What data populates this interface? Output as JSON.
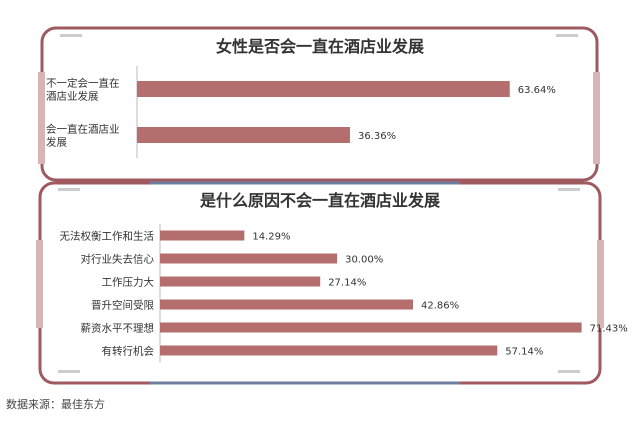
{
  "chart_data": [
    {
      "type": "bar",
      "title": "女性是否会一直在酒店业发展",
      "categories": [
        "不一定会一直在酒店业发展",
        "会一直在酒店业发展"
      ],
      "values": [
        63.64,
        36.36
      ],
      "value_labels": [
        "63.64%",
        "36.36%"
      ],
      "orientation": "horizontal",
      "xlim": [
        0,
        70
      ],
      "grid": false,
      "legend": "none",
      "bar_color": "#b56e6e"
    },
    {
      "type": "bar",
      "title": "是什么原因不会一直在酒店业发展",
      "categories": [
        "无法权衡工作和生活",
        "对行业失去信心",
        "工作压力大",
        "晋升空间受限",
        "薪资水平不理想",
        "有转行机会"
      ],
      "values": [
        14.29,
        30.0,
        27.14,
        42.86,
        71.43,
        57.14
      ],
      "value_labels": [
        "14.29%",
        "30.00%",
        "27.14%",
        "42.86%",
        "71.43%",
        "57.14%"
      ],
      "orientation": "horizontal",
      "xlim": [
        0,
        72
      ],
      "grid": false,
      "legend": "none",
      "bar_color": "#b56e6e"
    }
  ],
  "source": "数据来源：最佳东方",
  "colors": {
    "frame_top": "#9e5a5f",
    "frame_bottom": "#6f7ea0",
    "side_tab": "#d8b4b6",
    "axis": "#bbbbbb"
  }
}
